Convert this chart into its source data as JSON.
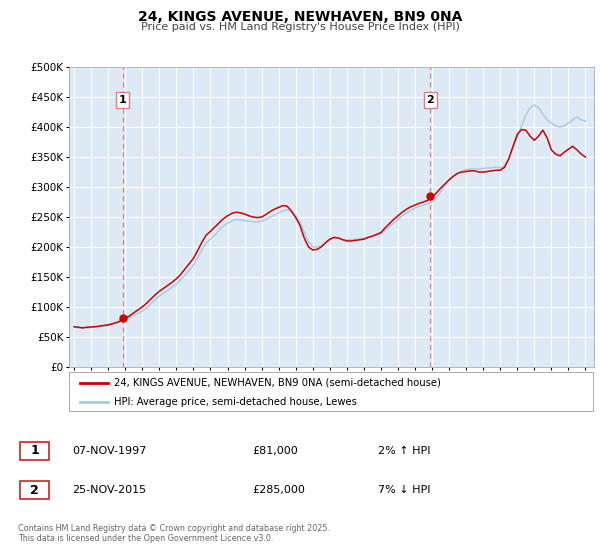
{
  "title": "24, KINGS AVENUE, NEWHAVEN, BN9 0NA",
  "subtitle": "Price paid vs. HM Land Registry's House Price Index (HPI)",
  "ylim": [
    0,
    500000
  ],
  "yticks": [
    0,
    50000,
    100000,
    150000,
    200000,
    250000,
    300000,
    350000,
    400000,
    450000,
    500000
  ],
  "xlim_start": 1994.7,
  "xlim_end": 2025.5,
  "hpi_color": "#a8cce0",
  "price_color": "#cc0000",
  "dashed_color": "#e08080",
  "bg_color": "#ddeaf5",
  "grid_color": "#ffffff",
  "marker1_year": 1997.85,
  "marker2_year": 2015.9,
  "marker1_value": 81000,
  "marker2_value": 285000,
  "legend_label1": "24, KINGS AVENUE, NEWHAVEN, BN9 0NA (semi-detached house)",
  "legend_label2": "HPI: Average price, semi-detached house, Lewes",
  "sale1_date": "07-NOV-1997",
  "sale1_price": "£81,000",
  "sale1_hpi": "2% ↑ HPI",
  "sale2_date": "25-NOV-2015",
  "sale2_price": "£285,000",
  "sale2_hpi": "7% ↓ HPI",
  "footer": "Contains HM Land Registry data © Crown copyright and database right 2025.\nThis data is licensed under the Open Government Licence v3.0.",
  "hpi_data_years": [
    1995.0,
    1995.25,
    1995.5,
    1995.75,
    1996.0,
    1996.25,
    1996.5,
    1996.75,
    1997.0,
    1997.25,
    1997.5,
    1997.75,
    1998.0,
    1998.25,
    1998.5,
    1998.75,
    1999.0,
    1999.25,
    1999.5,
    1999.75,
    2000.0,
    2000.25,
    2000.5,
    2000.75,
    2001.0,
    2001.25,
    2001.5,
    2001.75,
    2002.0,
    2002.25,
    2002.5,
    2002.75,
    2003.0,
    2003.25,
    2003.5,
    2003.75,
    2004.0,
    2004.25,
    2004.5,
    2004.75,
    2005.0,
    2005.25,
    2005.5,
    2005.75,
    2006.0,
    2006.25,
    2006.5,
    2006.75,
    2007.0,
    2007.25,
    2007.5,
    2007.75,
    2008.0,
    2008.25,
    2008.5,
    2008.75,
    2009.0,
    2009.25,
    2009.5,
    2009.75,
    2010.0,
    2010.25,
    2010.5,
    2010.75,
    2011.0,
    2011.25,
    2011.5,
    2011.75,
    2012.0,
    2012.25,
    2012.5,
    2012.75,
    2013.0,
    2013.25,
    2013.5,
    2013.75,
    2014.0,
    2014.25,
    2014.5,
    2014.75,
    2015.0,
    2015.25,
    2015.5,
    2015.75,
    2016.0,
    2016.25,
    2016.5,
    2016.75,
    2017.0,
    2017.25,
    2017.5,
    2017.75,
    2018.0,
    2018.25,
    2018.5,
    2018.75,
    2019.0,
    2019.25,
    2019.5,
    2019.75,
    2020.0,
    2020.25,
    2020.5,
    2020.75,
    2021.0,
    2021.25,
    2021.5,
    2021.75,
    2022.0,
    2022.25,
    2022.5,
    2022.75,
    2023.0,
    2023.25,
    2023.5,
    2023.75,
    2024.0,
    2024.25,
    2024.5,
    2024.75,
    2025.0
  ],
  "hpi_data_values": [
    66000,
    65500,
    64500,
    65000,
    65500,
    66000,
    67000,
    68000,
    69000,
    71000,
    73000,
    76000,
    79000,
    82000,
    86000,
    89000,
    93000,
    98000,
    105000,
    112000,
    118000,
    123000,
    128000,
    133000,
    138000,
    145000,
    153000,
    161000,
    170000,
    182000,
    195000,
    207000,
    213000,
    220000,
    228000,
    235000,
    240000,
    243000,
    246000,
    245000,
    244000,
    243000,
    242000,
    242000,
    243000,
    246000,
    250000,
    253000,
    257000,
    260000,
    262000,
    258000,
    252000,
    242000,
    225000,
    208000,
    200000,
    200000,
    202000,
    207000,
    212000,
    215000,
    215000,
    213000,
    212000,
    212000,
    213000,
    213000,
    214000,
    216000,
    218000,
    220000,
    222000,
    228000,
    234000,
    240000,
    246000,
    252000,
    257000,
    261000,
    265000,
    268000,
    270000,
    272000,
    275000,
    282000,
    292000,
    303000,
    312000,
    318000,
    323000,
    327000,
    329000,
    330000,
    330000,
    330000,
    331000,
    332000,
    332000,
    333000,
    332000,
    335000,
    348000,
    365000,
    382000,
    402000,
    420000,
    432000,
    437000,
    432000,
    422000,
    412000,
    407000,
    402000,
    400000,
    402000,
    407000,
    412000,
    417000,
    412000,
    410000
  ],
  "price_data_years": [
    1995.0,
    1995.25,
    1995.5,
    1995.75,
    1996.0,
    1996.25,
    1996.5,
    1996.75,
    1997.0,
    1997.25,
    1997.5,
    1997.75,
    1998.0,
    1998.25,
    1998.5,
    1998.75,
    1999.0,
    1999.25,
    1999.5,
    1999.75,
    2000.0,
    2000.25,
    2000.5,
    2000.75,
    2001.0,
    2001.25,
    2001.5,
    2001.75,
    2002.0,
    2002.25,
    2002.5,
    2002.75,
    2003.0,
    2003.25,
    2003.5,
    2003.75,
    2004.0,
    2004.25,
    2004.5,
    2004.75,
    2005.0,
    2005.25,
    2005.5,
    2005.75,
    2006.0,
    2006.25,
    2006.5,
    2006.75,
    2007.0,
    2007.25,
    2007.5,
    2007.75,
    2008.0,
    2008.25,
    2008.5,
    2008.75,
    2009.0,
    2009.25,
    2009.5,
    2009.75,
    2010.0,
    2010.25,
    2010.5,
    2010.75,
    2011.0,
    2011.25,
    2011.5,
    2011.75,
    2012.0,
    2012.25,
    2012.5,
    2012.75,
    2013.0,
    2013.25,
    2013.5,
    2013.75,
    2014.0,
    2014.25,
    2014.5,
    2014.75,
    2015.0,
    2015.25,
    2015.5,
    2015.75,
    2016.0,
    2016.25,
    2016.5,
    2016.75,
    2017.0,
    2017.25,
    2017.5,
    2017.75,
    2018.0,
    2018.25,
    2018.5,
    2018.75,
    2019.0,
    2019.25,
    2019.5,
    2019.75,
    2020.0,
    2020.25,
    2020.5,
    2020.75,
    2021.0,
    2021.25,
    2021.5,
    2021.75,
    2022.0,
    2022.25,
    2022.5,
    2022.75,
    2023.0,
    2023.25,
    2023.5,
    2023.75,
    2024.0,
    2024.25,
    2024.5,
    2024.75,
    2025.0
  ],
  "price_data_values": [
    67000,
    66000,
    65000,
    66000,
    66500,
    67000,
    68000,
    69000,
    70000,
    72000,
    74000,
    77000,
    81000,
    85000,
    90000,
    95000,
    100000,
    106000,
    113000,
    120000,
    126000,
    131000,
    136000,
    141000,
    147000,
    154000,
    163000,
    172000,
    181000,
    194000,
    208000,
    220000,
    226000,
    233000,
    240000,
    247000,
    252000,
    256000,
    258000,
    257000,
    255000,
    252000,
    250000,
    249000,
    250000,
    254000,
    259000,
    263000,
    266000,
    269000,
    268000,
    260000,
    249000,
    236000,
    215000,
    200000,
    195000,
    196000,
    200000,
    207000,
    213000,
    216000,
    215000,
    212000,
    210000,
    210000,
    211000,
    212000,
    213000,
    216000,
    218000,
    221000,
    224000,
    232000,
    239000,
    246000,
    252000,
    258000,
    263000,
    267000,
    270000,
    273000,
    275000,
    278000,
    283000,
    290000,
    298000,
    305000,
    312000,
    318000,
    323000,
    325000,
    326000,
    327000,
    327000,
    325000,
    325000,
    326000,
    327000,
    328000,
    328000,
    333000,
    347000,
    368000,
    388000,
    396000,
    395000,
    385000,
    378000,
    385000,
    395000,
    382000,
    362000,
    355000,
    352000,
    358000,
    363000,
    368000,
    362000,
    355000,
    350000
  ]
}
